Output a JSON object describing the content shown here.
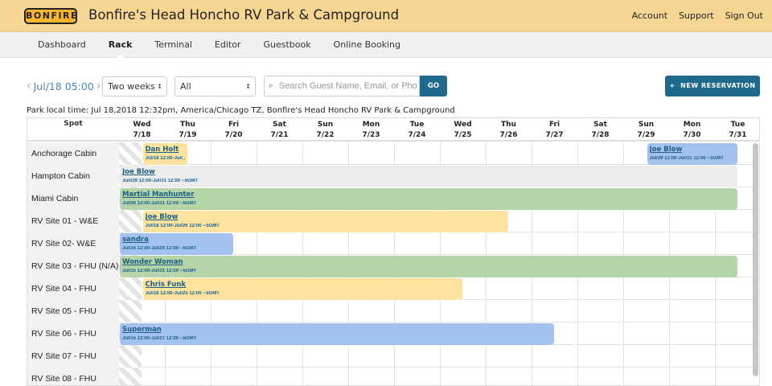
{
  "header": {
    "logo": "BONFIRE",
    "title": "Bonfire's Head Honcho RV Park & Campground",
    "links": [
      "Account",
      "Support",
      "Sign Out"
    ]
  },
  "nav": {
    "items": [
      "Dashboard",
      "Rack",
      "Terminal",
      "Editor",
      "Guestbook",
      "Online Booking"
    ],
    "active": "Rack"
  },
  "toolbar": {
    "date": "Jul/18 05:00",
    "range": "Two weeks",
    "filter": "All",
    "search_placeholder": "Search Guest Name, Email, or Phone",
    "go": "GO",
    "new_reservation": "NEW RESERVATION"
  },
  "local_time": "Park local time: Jul 18,2018 12:32pm, America/Chicago TZ, Bonfire's Head Honcho RV Park & Campground",
  "grid": {
    "spot_header": "Spot",
    "days": [
      {
        "dow": "Wed",
        "date": "7/18"
      },
      {
        "dow": "Thu",
        "date": "7/19"
      },
      {
        "dow": "Fri",
        "date": "7/20"
      },
      {
        "dow": "Sat",
        "date": "7/21"
      },
      {
        "dow": "Sun",
        "date": "7/22"
      },
      {
        "dow": "Mon",
        "date": "7/23"
      },
      {
        "dow": "Tue",
        "date": "7/24"
      },
      {
        "dow": "Wed",
        "date": "7/25"
      },
      {
        "dow": "Thu",
        "date": "7/26"
      },
      {
        "dow": "Fri",
        "date": "7/27"
      },
      {
        "dow": "Sat",
        "date": "7/28"
      },
      {
        "dow": "Sun",
        "date": "7/29"
      },
      {
        "dow": "Mon",
        "date": "7/30"
      },
      {
        "dow": "Tue",
        "date": "7/31"
      }
    ],
    "first_day": "Jul/18",
    "colors": {
      "yellow": "#fde39d",
      "blue": "#a3c2f0",
      "green": "#b5d5a8",
      "grey": "#ececec"
    },
    "rows": [
      {
        "spot": "Anchorage Cabin",
        "bookings": [
          {
            "guest": "Dan Holt",
            "dates": "Jul/18 12:00-Jul/...",
            "start": "Jul/18 12:00",
            "end": "Jul/19 12:00",
            "color": "yellow"
          },
          {
            "guest": "Joe Blow",
            "dates": "Jul/29 12:00-Jul/31 12:00 --5GMT",
            "start": "Jul/29 12:00",
            "end": "Jul/31 12:00",
            "color": "blue"
          }
        ]
      },
      {
        "spot": "Hampton Cabin",
        "bookings": [
          {
            "guest": "Joe Blow",
            "dates": "Jun/29 12:00-Jul/31 12:00 --5GMT",
            "start": "Jun/29 12:00",
            "end": "Jul/31 12:00",
            "color": "grey"
          }
        ]
      },
      {
        "spot": "Miami Cabin",
        "bookings": [
          {
            "guest": "Martial Manhunter",
            "dates": "Jul/06 12:00-Jul/31 12:00 --5GMT",
            "start": "Jul/06 12:00",
            "end": "Jul/31 12:00",
            "color": "green"
          }
        ]
      },
      {
        "spot": "RV Site 01 - W&E",
        "bookings": [
          {
            "guest": "Joe Blow",
            "dates": "Jul/18 12:00-Jul/26 12:00 --5GMT",
            "start": "Jul/18 12:00",
            "end": "Jul/26 12:00",
            "color": "yellow"
          }
        ]
      },
      {
        "spot": "RV Site 02- W&E",
        "bookings": [
          {
            "guest": "sandra",
            "dates": "Jul/15 12:00-Jul/20 12:00 --5GMT",
            "start": "Jul/15 12:00",
            "end": "Jul/20 12:00",
            "color": "blue"
          }
        ]
      },
      {
        "spot": "RV Site 03 - FHU (N/A)",
        "bookings": [
          {
            "guest": "Wonder Woman",
            "dates": "Jul/15 12:00-Jul/31 12:00 --5GMT",
            "start": "Jul/15 12:00",
            "end": "Jul/31 12:00",
            "color": "green"
          }
        ]
      },
      {
        "spot": "RV Site 04 - FHU",
        "bookings": [
          {
            "guest": "Chris Funk",
            "dates": "Jul/18 12:00-Jul/25 12:00 --5GMT",
            "start": "Jul/18 12:00",
            "end": "Jul/25 12:00",
            "color": "yellow"
          }
        ]
      },
      {
        "spot": "RV Site 05 - FHU",
        "bookings": []
      },
      {
        "spot": "RV Site 06 - FHU",
        "bookings": [
          {
            "guest": "Superman",
            "dates": "Jul/15 12:00-Jul/27 12:00 --5GMT",
            "start": "Jul/15 12:00",
            "end": "Jul/27 12:00",
            "color": "blue"
          }
        ]
      },
      {
        "spot": "RV Site 07 - FHU",
        "bookings": []
      },
      {
        "spot": "RV Site 08 - FHU",
        "bookings": []
      }
    ]
  }
}
